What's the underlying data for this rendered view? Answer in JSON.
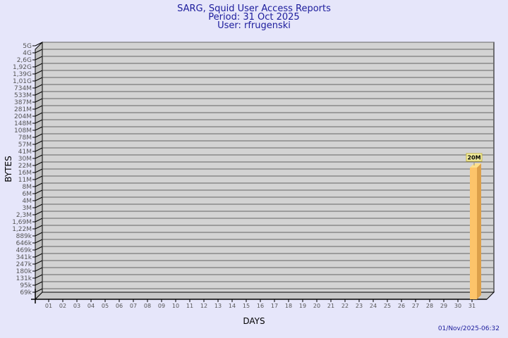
{
  "chart_data": {
    "type": "bar",
    "title": "SARG, Squid User Access Reports",
    "subtitle_period": "Period: 31 Oct 2025",
    "subtitle_user": "User: rfrugenski",
    "xlabel": "DAYS",
    "ylabel": "BYTES",
    "yscale": "log",
    "grid": true,
    "y_ticks": [
      "5G",
      "4G",
      "2,6G",
      "1,92G",
      "1,39G",
      "1,01G",
      "734M",
      "533M",
      "387M",
      "281M",
      "204M",
      "148M",
      "108M",
      "78M",
      "57M",
      "41M",
      "30M",
      "22M",
      "16M",
      "11M",
      "8M",
      "6M",
      "4M",
      "3M",
      "2,3M",
      "1,69M",
      "1,22M",
      "889k",
      "646k",
      "469k",
      "341k",
      "247k",
      "180k",
      "131k",
      "95k",
      "69k"
    ],
    "categories": [
      "01",
      "02",
      "03",
      "04",
      "05",
      "06",
      "07",
      "08",
      "09",
      "10",
      "11",
      "12",
      "13",
      "14",
      "15",
      "16",
      "17",
      "18",
      "19",
      "20",
      "21",
      "22",
      "23",
      "24",
      "25",
      "26",
      "27",
      "28",
      "29",
      "30",
      "31"
    ],
    "bars": [
      {
        "day": "31",
        "value": 20000000,
        "label": "20M"
      }
    ],
    "timestamp": "01/Nov/2025-06:32",
    "colors": {
      "background": "#e6e6fa",
      "wall": "#d3d3d3",
      "bar_front": "#fdc46a",
      "bar_side": "#dca04a",
      "bar_top": "#ffe08a",
      "title": "#1c1c9c"
    }
  }
}
